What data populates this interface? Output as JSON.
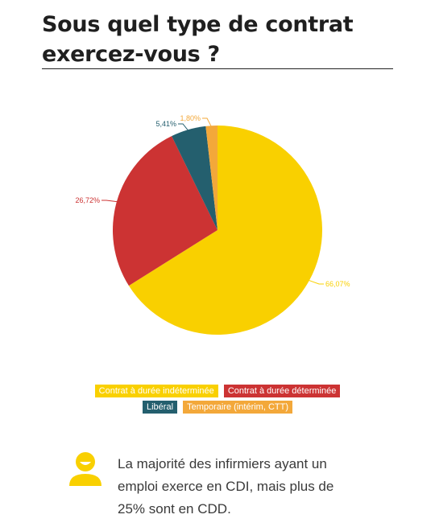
{
  "title": "Sous quel type de contrat exercez-vous ?",
  "chart_data": {
    "type": "pie",
    "title": "Sous quel type de contrat exercez-vous ?",
    "slices": [
      {
        "label": "Contrat à durée indéterminée",
        "value": 66.07,
        "value_label": "66,07%",
        "color": "#f9d000"
      },
      {
        "label": "Contrat à durée déterminée",
        "value": 26.72,
        "value_label": "26,72%",
        "color": "#cc3333"
      },
      {
        "label": "Libéral",
        "value": 5.41,
        "value_label": "5,41%",
        "color": "#245f6e"
      },
      {
        "label": "Temporaire (intérim, CTT)",
        "value": 1.8,
        "value_label": "1,80%",
        "color": "#f3a83a"
      }
    ],
    "start_angle_deg": 0,
    "direction": "clockwise",
    "legend_position": "bottom"
  },
  "note": {
    "icon": "person-icon",
    "icon_color": "#f9d000",
    "text": "La majorité des infirmiers ayant un emploi exerce en CDI, mais plus de 25% sont en CDD."
  }
}
